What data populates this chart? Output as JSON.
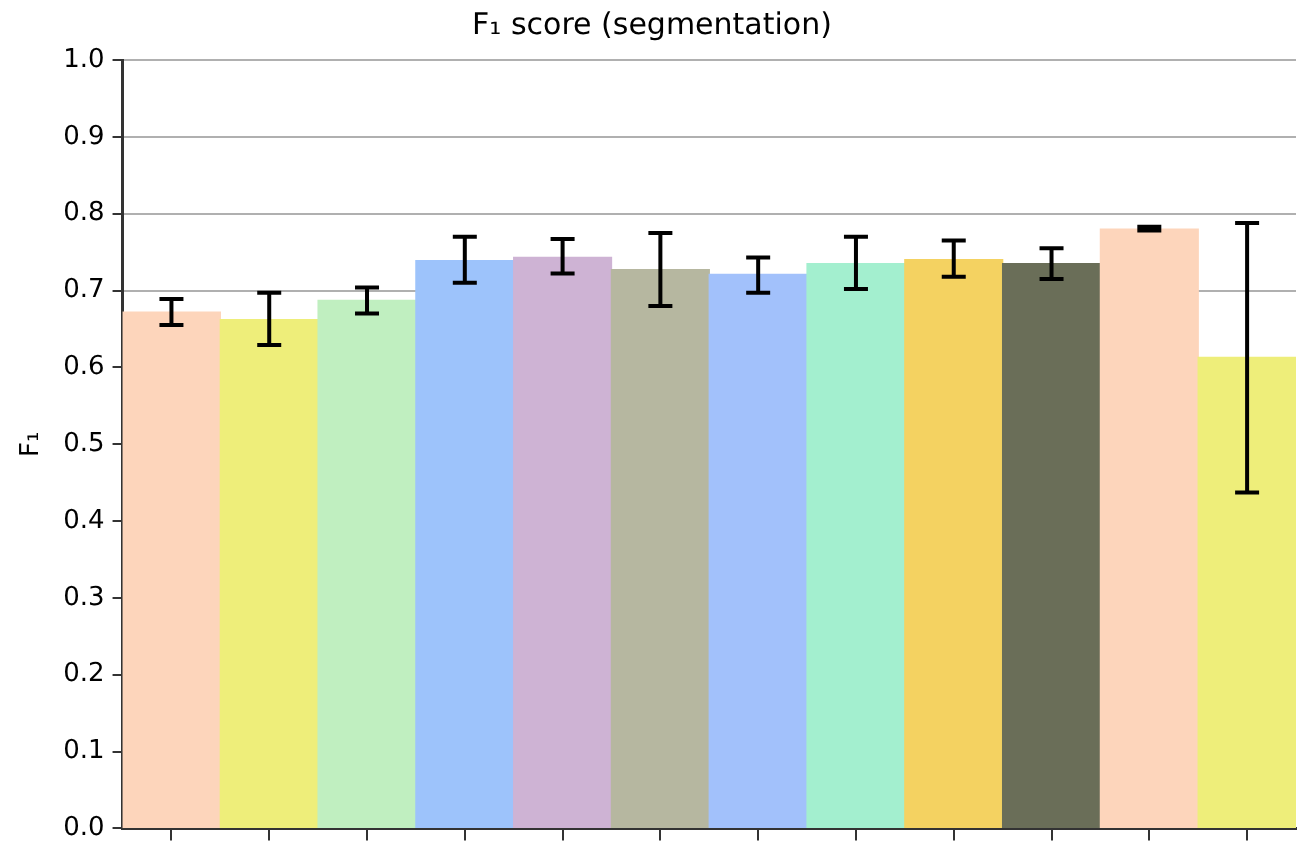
{
  "chart_data": {
    "type": "bar",
    "title": "F₁ score (segmentation)",
    "ylabel": "F₁",
    "categories": [
      null,
      null,
      null,
      null,
      null,
      null,
      null,
      null,
      null,
      null,
      null,
      null
    ],
    "values": [
      0.672,
      0.662,
      0.687,
      0.739,
      0.743,
      0.727,
      0.721,
      0.735,
      0.74,
      0.735,
      0.78,
      0.613
    ],
    "colors": [
      "#fdd5bb",
      "#eeee7a",
      "#c0efc0",
      "#9dc3fb",
      "#ceb3d4",
      "#b6b7a0",
      "#a2c1fb",
      "#a3efcf",
      "#f4d261",
      "#6a6e58",
      "#fdd5bb",
      "#eeee7a"
    ],
    "errors": [
      [
        0.655,
        0.689
      ],
      [
        0.629,
        0.697
      ],
      [
        0.67,
        0.704
      ],
      [
        0.71,
        0.77
      ],
      [
        0.722,
        0.767
      ],
      [
        0.68,
        0.775
      ],
      [
        0.697,
        0.743
      ],
      [
        0.702,
        0.77
      ],
      [
        0.718,
        0.765
      ],
      [
        0.715,
        0.755
      ],
      [
        0.778,
        0.783
      ],
      [
        0.437,
        0.788
      ]
    ],
    "ylim": [
      0,
      1
    ],
    "yticks": [
      {
        "value": 0,
        "label": "0.0"
      },
      0.1,
      0.2,
      0.3,
      0.4,
      0.5,
      0.6,
      0.7,
      0.8,
      0.9,
      {
        "value": 1,
        "label": "1.0"
      }
    ],
    "grid": "y",
    "legend": false,
    "tick_labels": "y"
  }
}
